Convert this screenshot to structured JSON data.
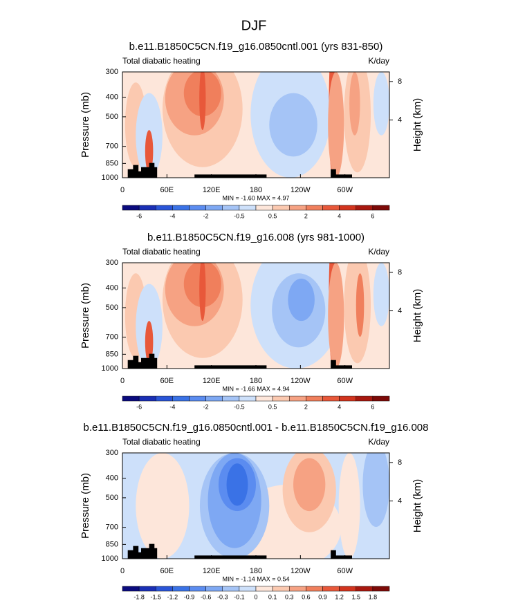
{
  "title": "DJF",
  "chart_data": [
    {
      "type": "contour",
      "title": "b.e11.B1850C5CN.f19_g16.0850cntl.001 (yrs 831-850)",
      "left_label": "Total diabatic heating",
      "right_label": "K/day",
      "ylabel": "Pressure (mb)",
      "y2label": "Height (km)",
      "yscale": "log",
      "xlim": [
        0,
        360
      ],
      "xticks": [
        0,
        {
          "value": 60,
          "label": "60E"
        },
        {
          "value": 120,
          "label": "120E"
        },
        180,
        {
          "value": 240,
          "label": "120W"
        },
        {
          "value": 300,
          "label": "60W"
        }
      ],
      "ylim": [
        1000,
        300
      ],
      "yticks": [
        300,
        400,
        500,
        700,
        850,
        1000
      ],
      "y2lim": [
        -2,
        9
      ],
      "y2ticks": [
        4,
        8
      ],
      "annotation": "MIN = -1.60  MAX = 4.97",
      "colorbar": {
        "labels": [
          -6,
          -4,
          -2,
          -0.5,
          0.5,
          2,
          4,
          6
        ],
        "colors": [
          "#0b0b7e",
          "#1a2fb5",
          "#2a55d8",
          "#3a72e6",
          "#5b8cf0",
          "#7ea8f3",
          "#a5c4f6",
          "#cde0fa",
          "#fde6da",
          "#fbc9b0",
          "#f6a283",
          "#f07f5c",
          "#e8583a",
          "#d2341e",
          "#a8180f",
          "#7d0a08"
        ]
      }
    },
    {
      "type": "contour",
      "title": "b.e11.B1850C5CN.f19_g16.008 (yrs 981-1000)",
      "left_label": "Total diabatic heating",
      "right_label": "K/day",
      "ylabel": "Pressure (mb)",
      "y2label": "Height (km)",
      "yscale": "log",
      "xlim": [
        0,
        360
      ],
      "xticks": [
        0,
        {
          "value": 60,
          "label": "60E"
        },
        {
          "value": 120,
          "label": "120E"
        },
        180,
        {
          "value": 240,
          "label": "120W"
        },
        {
          "value": 300,
          "label": "60W"
        }
      ],
      "ylim": [
        1000,
        300
      ],
      "yticks": [
        300,
        400,
        500,
        700,
        850,
        1000
      ],
      "y2lim": [
        -2,
        9
      ],
      "y2ticks": [
        4,
        8
      ],
      "annotation": "MIN = -1.66  MAX = 4.94",
      "colorbar": {
        "labels": [
          -6,
          -4,
          -2,
          -0.5,
          0.5,
          2,
          4,
          6
        ],
        "colors": [
          "#0b0b7e",
          "#1a2fb5",
          "#2a55d8",
          "#3a72e6",
          "#5b8cf0",
          "#7ea8f3",
          "#a5c4f6",
          "#cde0fa",
          "#fde6da",
          "#fbc9b0",
          "#f6a283",
          "#f07f5c",
          "#e8583a",
          "#d2341e",
          "#a8180f",
          "#7d0a08"
        ]
      }
    },
    {
      "type": "contour",
      "title": "b.e11.B1850C5CN.f19_g16.0850cntl.001 - b.e11.B1850C5CN.f19_g16.008",
      "left_label": "Total diabatic heating",
      "right_label": "K/day",
      "ylabel": "Pressure (mb)",
      "y2label": "Height (km)",
      "yscale": "log",
      "xlim": [
        0,
        360
      ],
      "xticks": [
        0,
        {
          "value": 60,
          "label": "60E"
        },
        {
          "value": 120,
          "label": "120E"
        },
        180,
        {
          "value": 240,
          "label": "120W"
        },
        {
          "value": 300,
          "label": "60W"
        }
      ],
      "ylim": [
        1000,
        300
      ],
      "yticks": [
        300,
        400,
        500,
        700,
        850,
        1000
      ],
      "y2lim": [
        -2,
        9
      ],
      "y2ticks": [
        4,
        8
      ],
      "annotation": "MIN = -1.14  MAX = 0.54",
      "colorbar": {
        "labels": [
          -1.8,
          -1.5,
          -1.2,
          -0.9,
          -0.6,
          -0.3,
          -0.1,
          0,
          0.1,
          0.3,
          0.6,
          0.9,
          1.2,
          1.5,
          1.8
        ],
        "colors": [
          "#0b0b7e",
          "#1a2fb5",
          "#2a55d8",
          "#3a72e6",
          "#5b8cf0",
          "#7ea8f3",
          "#a5c4f6",
          "#cde0fa",
          "#fde6da",
          "#fbc9b0",
          "#f6a283",
          "#f07f5c",
          "#e8583a",
          "#d2341e",
          "#a8180f",
          "#7d0a08"
        ]
      }
    }
  ]
}
